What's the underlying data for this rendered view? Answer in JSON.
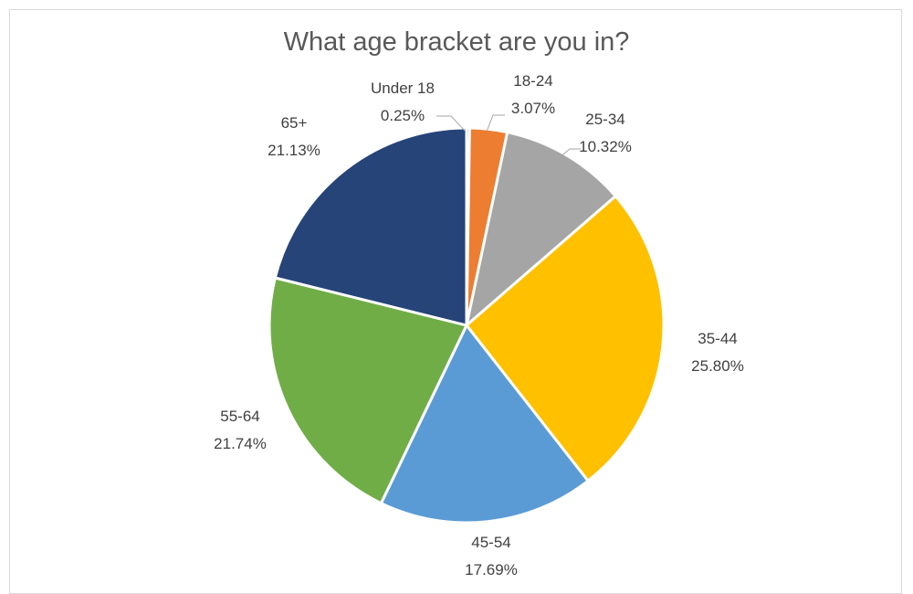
{
  "chart_data": {
    "type": "pie",
    "title": "What age bracket are you in?",
    "slices": [
      {
        "label": "Under 18",
        "value": 0.25,
        "display": "0.25%",
        "color": "#4472C4"
      },
      {
        "label": "18-24",
        "value": 3.07,
        "display": "3.07%",
        "color": "#ED7D31"
      },
      {
        "label": "25-34",
        "value": 10.32,
        "display": "10.32%",
        "color": "#A5A5A5"
      },
      {
        "label": "35-44",
        "value": 25.8,
        "display": "25.80%",
        "color": "#FFC000"
      },
      {
        "label": "45-54",
        "value": 17.69,
        "display": "17.69%",
        "color": "#5B9BD5"
      },
      {
        "label": "55-64",
        "value": 21.74,
        "display": "21.74%",
        "color": "#70AD47"
      },
      {
        "label": "65+",
        "value": 21.13,
        "display": "21.13%",
        "color": "#264478"
      }
    ],
    "legend": "none",
    "start_angle": "top, clockwise"
  }
}
